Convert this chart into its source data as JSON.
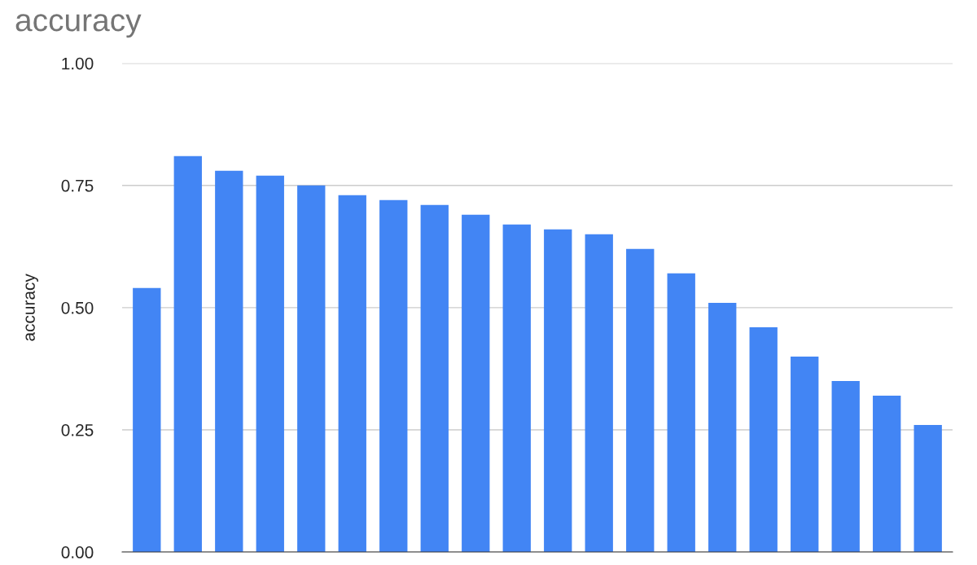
{
  "chart_data": {
    "type": "bar",
    "title": "accuracy",
    "ylabel": "accuracy",
    "categories": [
      null,
      null,
      null,
      null,
      null,
      null,
      null,
      null,
      null,
      null,
      null,
      null,
      null,
      null,
      null,
      null,
      null,
      null,
      null,
      null
    ],
    "values": [
      0.54,
      0.81,
      0.78,
      0.77,
      0.75,
      0.73,
      0.72,
      0.71,
      0.69,
      0.67,
      0.66,
      0.65,
      0.62,
      0.57,
      0.51,
      0.46,
      0.4,
      0.35,
      0.32,
      0.26
    ],
    "color": "#4285f4",
    "ylim": [
      0,
      1
    ],
    "yticks": [
      {
        "value": 0,
        "label": "0.00"
      },
      {
        "value": 0.25,
        "label": "0.25"
      },
      {
        "value": 0.5,
        "label": "0.50"
      },
      {
        "value": 0.75,
        "label": "0.75"
      },
      {
        "value": 1,
        "label": "1.00"
      }
    ],
    "grid": "y"
  }
}
